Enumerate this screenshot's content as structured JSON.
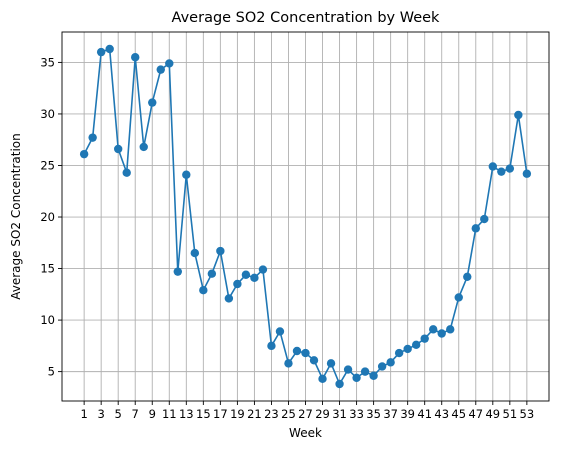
{
  "chart_data": {
    "type": "line",
    "title": "Average SO2 Concentration by Week",
    "xlabel": "Week",
    "ylabel": "Average SO2 Concentration",
    "x": [
      1,
      2,
      3,
      4,
      5,
      6,
      7,
      8,
      9,
      10,
      11,
      12,
      13,
      14,
      15,
      16,
      17,
      18,
      19,
      20,
      21,
      22,
      23,
      24,
      25,
      26,
      27,
      28,
      29,
      30,
      31,
      32,
      33,
      34,
      35,
      36,
      37,
      38,
      39,
      40,
      41,
      42,
      43,
      44,
      45,
      46,
      47,
      48,
      49,
      50,
      51,
      52,
      53
    ],
    "values": [
      26.1,
      27.7,
      36.0,
      36.3,
      26.6,
      24.3,
      35.5,
      26.8,
      31.1,
      34.3,
      34.9,
      14.7,
      24.1,
      16.5,
      12.9,
      14.5,
      16.7,
      12.1,
      13.5,
      14.4,
      14.1,
      14.9,
      7.5,
      8.9,
      5.8,
      7.0,
      6.8,
      6.1,
      4.3,
      5.8,
      3.8,
      5.2,
      4.4,
      5.0,
      4.6,
      5.5,
      5.9,
      6.8,
      7.2,
      7.6,
      8.2,
      9.1,
      8.7,
      9.1,
      12.2,
      14.2,
      18.9,
      19.8,
      24.9,
      24.4,
      24.7,
      29.9,
      24.2
    ],
    "xticks": [
      1,
      3,
      5,
      7,
      9,
      11,
      13,
      15,
      17,
      19,
      21,
      23,
      25,
      27,
      29,
      31,
      33,
      35,
      37,
      39,
      41,
      43,
      45,
      47,
      49,
      51,
      53
    ],
    "xtick_labels": [
      "1",
      "3",
      "5",
      "7",
      "9",
      "11",
      "13",
      "15",
      "17",
      "19",
      "21",
      "23",
      "25",
      "27",
      "29",
      "31",
      "33",
      "35",
      "37",
      "39",
      "41",
      "43",
      "45",
      "47",
      "49",
      "51",
      "53"
    ],
    "yticks": [
      5,
      10,
      15,
      20,
      25,
      30,
      35
    ],
    "ytick_labels": [
      "5",
      "10",
      "15",
      "20",
      "25",
      "30",
      "35"
    ],
    "xlim": [
      -1.6,
      55.6
    ],
    "ylim": [
      2.15,
      37.95
    ],
    "grid": true,
    "line_color": "#1f77b4",
    "marker": "circle"
  }
}
